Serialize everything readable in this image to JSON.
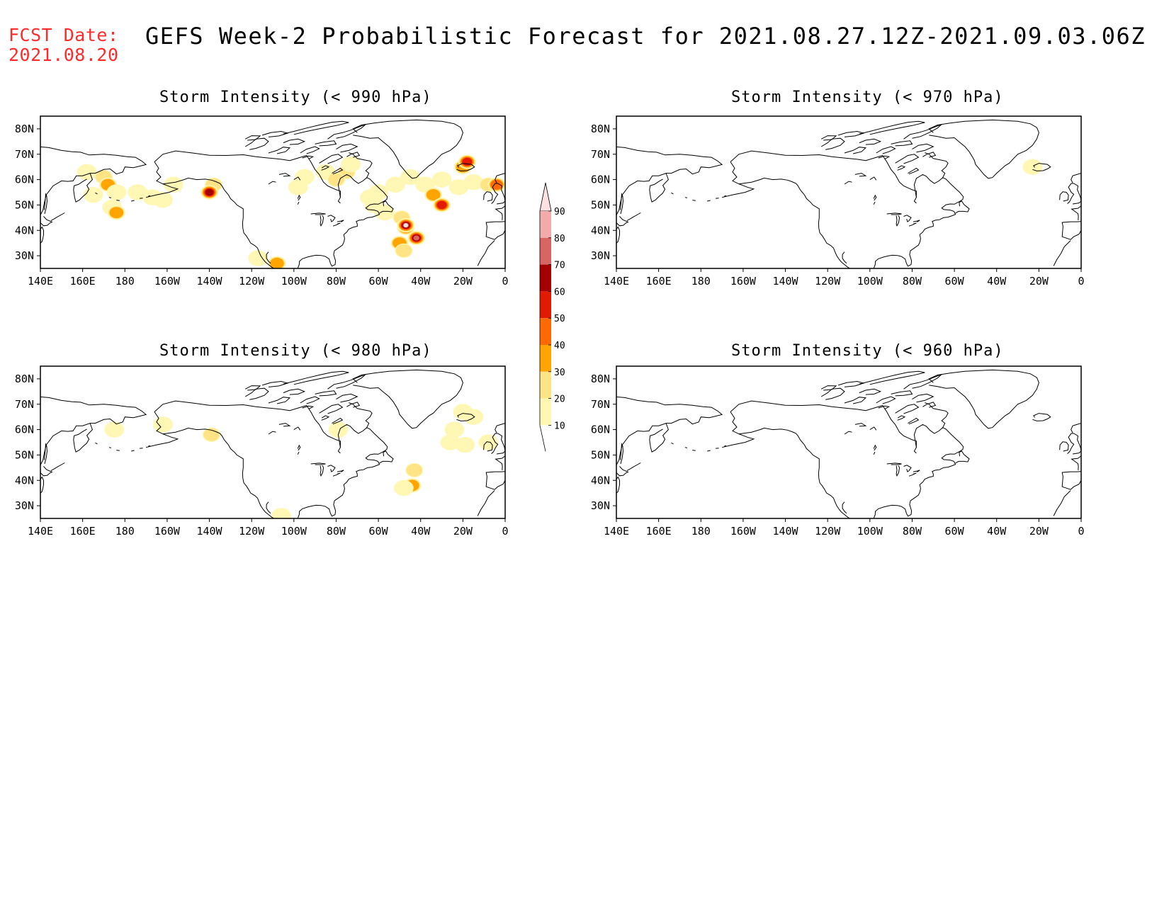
{
  "header": {
    "fcst_label": "FCST Date:",
    "fcst_date": "2021.08.20",
    "title": "GEFS Week-2 Probabilistic Forecast for 2021.08.27.12Z-2021.09.03.06Z"
  },
  "colors": {
    "fcst_text": "#ff2a2a",
    "scale": [
      "#fff7b3",
      "#ffe485",
      "#ffa400",
      "#ff6a00",
      "#e11a00",
      "#a50000",
      "#d96464",
      "#f3aaaa",
      "#fde1e1"
    ]
  },
  "axes": {
    "lon_ticks": [
      "140E",
      "160E",
      "180",
      "160W",
      "140W",
      "120W",
      "100W",
      "80W",
      "60W",
      "40W",
      "20W",
      "0"
    ],
    "lat_ticks": [
      "80N",
      "70N",
      "60N",
      "50N",
      "40N",
      "30N"
    ]
  },
  "colorbar": {
    "labels": [
      "10",
      "20",
      "30",
      "40",
      "50",
      "60",
      "70",
      "80",
      "90"
    ]
  },
  "panels": [
    {
      "id": "p990",
      "title": "Storm Intensity (< 990 hPa)",
      "blobs": [
        {
          "lon": 162,
          "lat": 63,
          "level": 1
        },
        {
          "lon": 170,
          "lat": 61,
          "level": 2
        },
        {
          "lon": 172,
          "lat": 58,
          "level": 3
        },
        {
          "lon": 165,
          "lat": 54,
          "level": 1
        },
        {
          "lon": 176,
          "lat": 55,
          "level": 1
        },
        {
          "lon": 174,
          "lat": 49,
          "level": 1
        },
        {
          "lon": 176,
          "lat": 47,
          "level": 3
        },
        {
          "lon": 186,
          "lat": 55,
          "level": 1
        },
        {
          "lon": 193,
          "lat": 53,
          "level": 1
        },
        {
          "lon": 203,
          "lat": 58,
          "level": 1
        },
        {
          "lon": 198,
          "lat": 52,
          "level": 1
        },
        {
          "lon": 222,
          "lat": 58,
          "level": 2
        },
        {
          "lon": 220,
          "lat": 55,
          "level": 6
        },
        {
          "lon": 252,
          "lat": 27,
          "level": 3
        },
        {
          "lon": 243,
          "lat": 29,
          "level": 1
        },
        {
          "lon": 265,
          "lat": 61,
          "level": 1
        },
        {
          "lon": 275,
          "lat": 63,
          "level": 1
        },
        {
          "lon": 285,
          "lat": 63,
          "level": 2
        },
        {
          "lon": 287,
          "lat": 66,
          "level": 1
        },
        {
          "lon": 280,
          "lat": 60,
          "level": 2
        },
        {
          "lon": 262,
          "lat": 57,
          "level": 1
        },
        {
          "lon": 300,
          "lat": 55,
          "level": 1
        },
        {
          "lon": 308,
          "lat": 58,
          "level": 1
        },
        {
          "lon": 315,
          "lat": 61,
          "level": 1
        },
        {
          "lon": 322,
          "lat": 58,
          "level": 1
        },
        {
          "lon": 330,
          "lat": 60,
          "level": 1
        },
        {
          "lon": 338,
          "lat": 57,
          "level": 1
        },
        {
          "lon": 345,
          "lat": 59,
          "level": 1
        },
        {
          "lon": 352,
          "lat": 58,
          "level": 2
        },
        {
          "lon": 356,
          "lat": 58,
          "level": 4
        },
        {
          "lon": 340,
          "lat": 65,
          "level": 3
        },
        {
          "lon": 342,
          "lat": 67,
          "level": 5
        },
        {
          "lon": 326,
          "lat": 54,
          "level": 3
        },
        {
          "lon": 330,
          "lat": 50,
          "level": 5
        },
        {
          "lon": 303,
          "lat": 47,
          "level": 1
        },
        {
          "lon": 311,
          "lat": 45,
          "level": 2
        },
        {
          "lon": 313,
          "lat": 41,
          "level": 5
        },
        {
          "lon": 313,
          "lat": 42,
          "level": 9
        },
        {
          "lon": 310,
          "lat": 35,
          "level": 3
        },
        {
          "lon": 312,
          "lat": 32,
          "level": 2
        },
        {
          "lon": 318,
          "lat": 37,
          "level": 7
        },
        {
          "lon": 298,
          "lat": 50,
          "level": 1
        },
        {
          "lon": 296,
          "lat": 53,
          "level": 1
        }
      ]
    },
    {
      "id": "p970",
      "title": "Storm Intensity (< 970 hPa)",
      "blobs": [
        {
          "lon": 337,
          "lat": 65,
          "level": 1
        }
      ]
    },
    {
      "id": "p980",
      "title": "Storm Intensity (< 980 hPa)",
      "blobs": [
        {
          "lon": 198,
          "lat": 62,
          "level": 1
        },
        {
          "lon": 175,
          "lat": 60,
          "level": 1
        },
        {
          "lon": 221,
          "lat": 58,
          "level": 2
        },
        {
          "lon": 254,
          "lat": 26,
          "level": 1
        },
        {
          "lon": 281,
          "lat": 60,
          "level": 1
        },
        {
          "lon": 317,
          "lat": 44,
          "level": 2
        },
        {
          "lon": 316,
          "lat": 38,
          "level": 3
        },
        {
          "lon": 312,
          "lat": 37,
          "level": 1
        },
        {
          "lon": 340,
          "lat": 67,
          "level": 1
        },
        {
          "lon": 345,
          "lat": 65,
          "level": 1
        },
        {
          "lon": 336,
          "lat": 60,
          "level": 1
        },
        {
          "lon": 334,
          "lat": 55,
          "level": 1
        },
        {
          "lon": 341,
          "lat": 54,
          "level": 1
        },
        {
          "lon": 352,
          "lat": 55,
          "level": 1
        }
      ]
    },
    {
      "id": "p960",
      "title": "Storm Intensity (< 960 hPa)",
      "blobs": []
    }
  ]
}
